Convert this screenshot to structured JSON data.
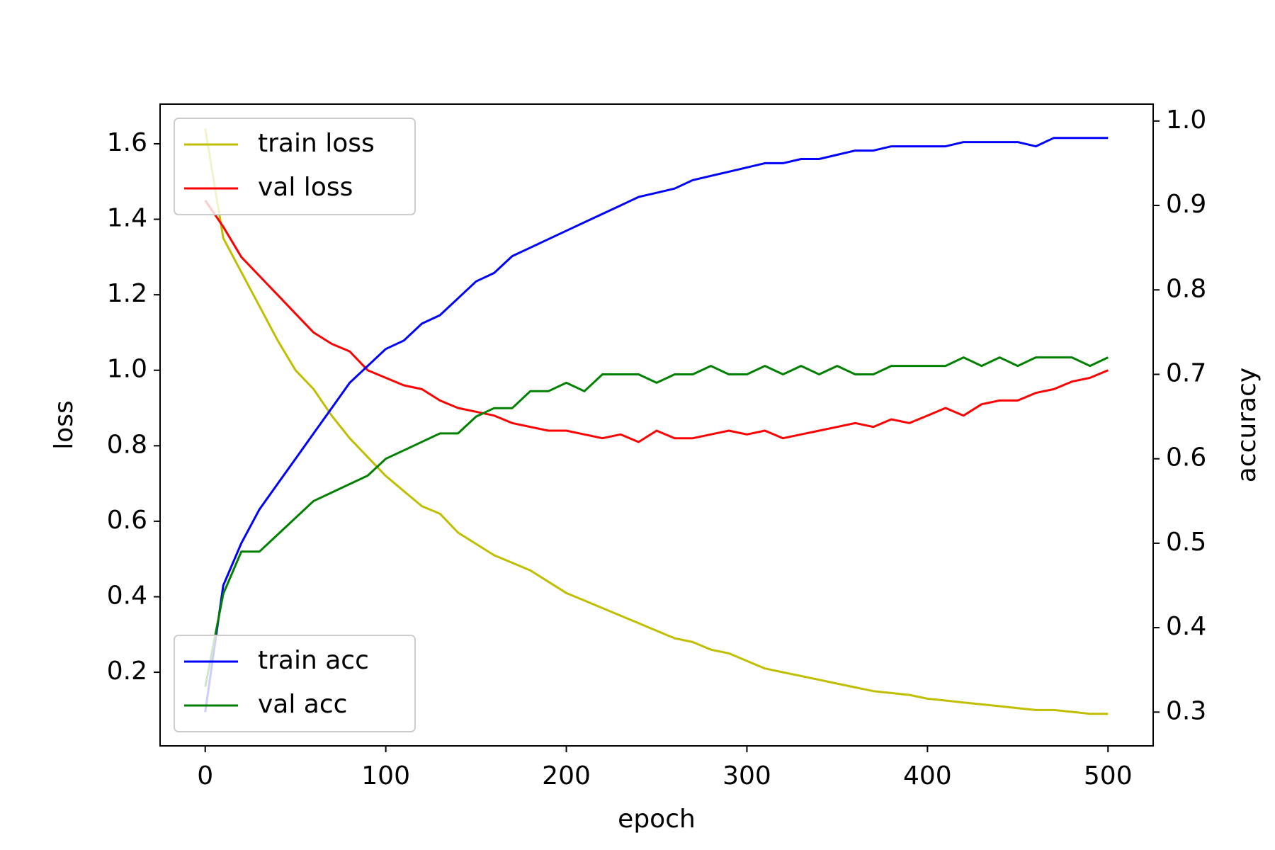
{
  "chart_data": {
    "type": "line",
    "xlabel": "epoch",
    "ylabel": "loss",
    "y2label": "accuracy",
    "x": [
      0,
      10,
      20,
      30,
      40,
      50,
      60,
      70,
      80,
      90,
      100,
      110,
      120,
      130,
      140,
      150,
      160,
      170,
      180,
      190,
      200,
      210,
      220,
      230,
      240,
      250,
      260,
      270,
      280,
      290,
      300,
      310,
      320,
      330,
      340,
      350,
      360,
      370,
      380,
      390,
      400,
      410,
      420,
      430,
      440,
      450,
      460,
      470,
      480,
      490,
      500
    ],
    "series": [
      {
        "name": "train loss",
        "color": "#bfbf00",
        "axis": "y",
        "values": [
          1.64,
          1.35,
          1.26,
          1.17,
          1.08,
          1.0,
          0.95,
          0.88,
          0.82,
          0.77,
          0.72,
          0.68,
          0.64,
          0.62,
          0.57,
          0.54,
          0.51,
          0.49,
          0.47,
          0.44,
          0.41,
          0.39,
          0.37,
          0.35,
          0.33,
          0.31,
          0.29,
          0.28,
          0.26,
          0.25,
          0.23,
          0.21,
          0.2,
          0.19,
          0.18,
          0.17,
          0.16,
          0.15,
          0.145,
          0.14,
          0.13,
          0.125,
          0.12,
          0.115,
          0.11,
          0.105,
          0.1,
          0.1,
          0.095,
          0.09,
          0.09
        ]
      },
      {
        "name": "val loss",
        "color": "#ff0000",
        "axis": "y",
        "values": [
          1.45,
          1.38,
          1.3,
          1.25,
          1.2,
          1.15,
          1.1,
          1.07,
          1.05,
          1.0,
          0.98,
          0.96,
          0.95,
          0.92,
          0.9,
          0.89,
          0.88,
          0.86,
          0.85,
          0.84,
          0.84,
          0.83,
          0.82,
          0.83,
          0.81,
          0.84,
          0.82,
          0.82,
          0.83,
          0.84,
          0.83,
          0.84,
          0.82,
          0.83,
          0.84,
          0.85,
          0.86,
          0.85,
          0.87,
          0.86,
          0.88,
          0.9,
          0.88,
          0.91,
          0.92,
          0.92,
          0.94,
          0.95,
          0.97,
          0.98,
          1.0
        ]
      },
      {
        "name": "train acc",
        "color": "#0000ff",
        "axis": "y2",
        "values": [
          0.3,
          0.45,
          0.5,
          0.54,
          0.57,
          0.6,
          0.63,
          0.66,
          0.69,
          0.71,
          0.73,
          0.74,
          0.76,
          0.77,
          0.79,
          0.81,
          0.82,
          0.84,
          0.85,
          0.86,
          0.87,
          0.88,
          0.89,
          0.9,
          0.91,
          0.915,
          0.92,
          0.93,
          0.935,
          0.94,
          0.945,
          0.95,
          0.95,
          0.955,
          0.955,
          0.96,
          0.965,
          0.965,
          0.97,
          0.97,
          0.97,
          0.97,
          0.975,
          0.975,
          0.975,
          0.975,
          0.97,
          0.98,
          0.98,
          0.98,
          0.98
        ]
      },
      {
        "name": "val acc",
        "color": "#008000",
        "axis": "y2",
        "values": [
          0.33,
          0.44,
          0.49,
          0.49,
          0.51,
          0.53,
          0.55,
          0.56,
          0.57,
          0.58,
          0.6,
          0.61,
          0.62,
          0.63,
          0.63,
          0.65,
          0.66,
          0.66,
          0.68,
          0.68,
          0.69,
          0.68,
          0.7,
          0.7,
          0.7,
          0.69,
          0.7,
          0.7,
          0.71,
          0.7,
          0.7,
          0.71,
          0.7,
          0.71,
          0.7,
          0.71,
          0.7,
          0.7,
          0.71,
          0.71,
          0.71,
          0.71,
          0.72,
          0.71,
          0.72,
          0.71,
          0.72,
          0.72,
          0.72,
          0.71,
          0.72
        ]
      }
    ],
    "xlim": [
      -25,
      525
    ],
    "xticks": [
      0,
      100,
      200,
      300,
      400,
      500
    ],
    "ylim": [
      0.005,
      1.705
    ],
    "yticks": [
      0.2,
      0.4,
      0.6,
      0.8,
      {
        "value": 1,
        "label": "1.0"
      },
      1.2,
      1.4,
      1.6
    ],
    "y2lim": [
      0.26,
      1.02
    ],
    "y2ticks": [
      0.3,
      0.4,
      0.5,
      0.6,
      0.7,
      0.8,
      0.9,
      {
        "value": 1,
        "label": "1.0"
      }
    ],
    "legend_loc": {
      "y": "upper left",
      "y2": "lower left"
    }
  }
}
